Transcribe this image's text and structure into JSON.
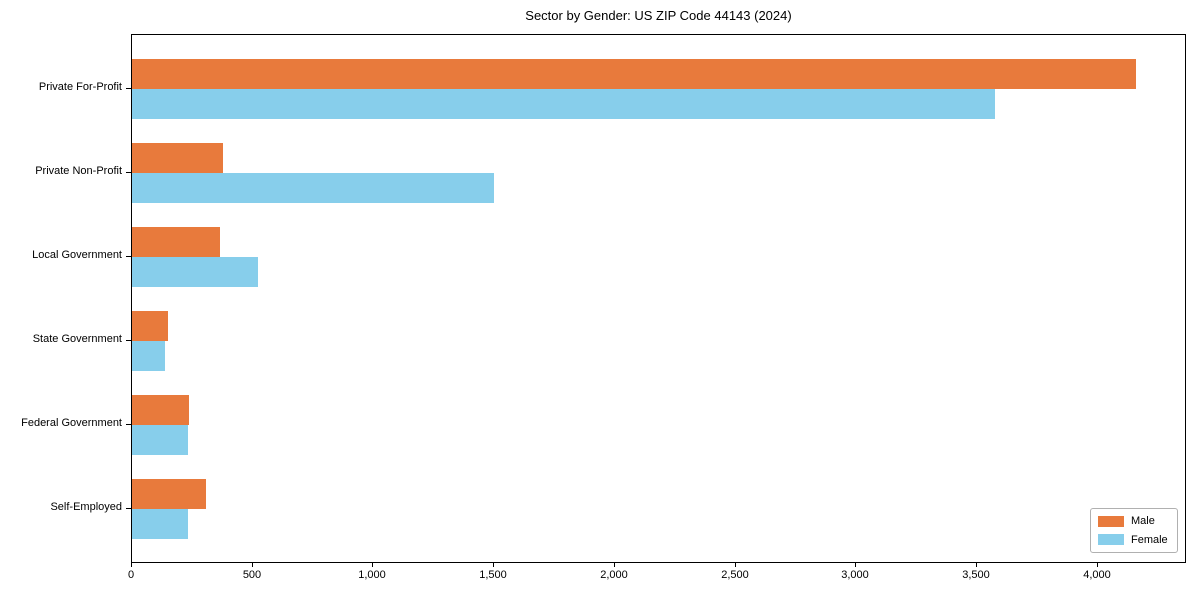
{
  "chart_data": {
    "type": "bar",
    "orientation": "horizontal",
    "title": "Sector by Gender: US ZIP Code 44143 (2024)",
    "categories": [
      "Private For-Profit",
      "Private Non-Profit",
      "Local Government",
      "State Government",
      "Federal Government",
      "Self-Employed"
    ],
    "series": [
      {
        "name": "Male",
        "color": "#e87a3c",
        "values": [
          4160,
          375,
          365,
          150,
          235,
          305
        ]
      },
      {
        "name": "Female",
        "color": "#87ceeb",
        "values": [
          3575,
          1500,
          520,
          135,
          230,
          230
        ]
      }
    ],
    "xlabel": "",
    "ylabel": "",
    "xlim": [
      0,
      4370
    ],
    "x_ticks": [
      0,
      500,
      1000,
      1500,
      2000,
      2500,
      3000,
      3500,
      4000
    ],
    "x_tick_labels": [
      "0",
      "500",
      "1,000",
      "1,500",
      "2,000",
      "2,500",
      "3,000",
      "3,500",
      "4,000"
    ],
    "grid": false,
    "legend": {
      "position": "lower-right"
    }
  }
}
